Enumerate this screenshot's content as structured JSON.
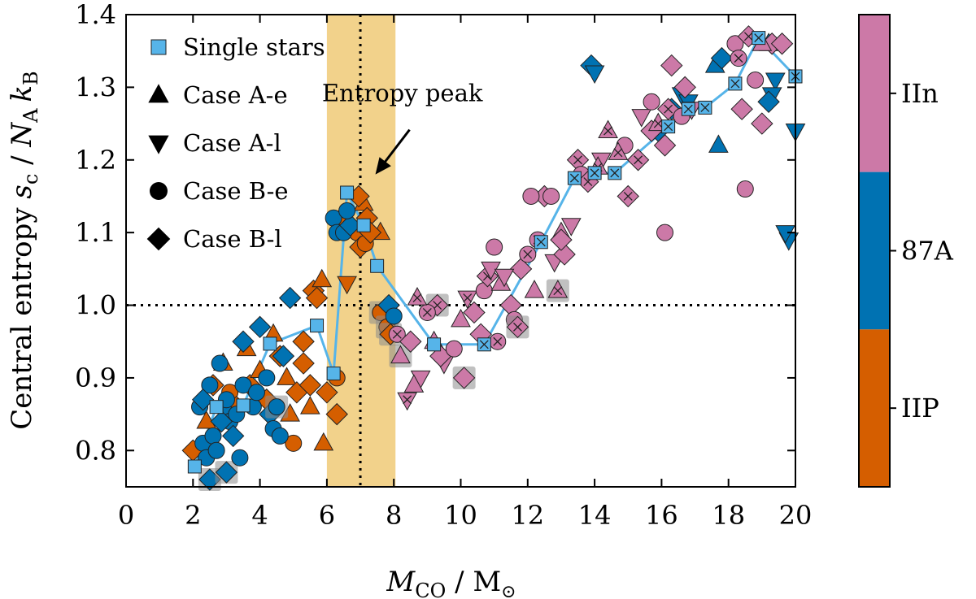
{
  "chart_data": {
    "type": "scatter",
    "xlabel_main": "M",
    "xlabel_sub": "CO",
    "xlabel_unit": " / M",
    "xlabel_sun": "⊙",
    "ylabel_pre": "Central entropy ",
    "ylabel_s": "s",
    "ylabel_c": "c",
    "ylabel_mid": " / ",
    "ylabel_N": "N",
    "ylabel_A": "A",
    "ylabel_k": "k",
    "ylabel_B": "B",
    "xlim": [
      0,
      20
    ],
    "ylim": [
      0.75,
      1.4
    ],
    "xticks": [
      "0",
      "2",
      "4",
      "6",
      "8",
      "10",
      "12",
      "14",
      "16",
      "18",
      "20"
    ],
    "yticks": [
      "0.8",
      "0.9",
      "1.0",
      "1.1",
      "1.2",
      "1.3",
      "1.4"
    ],
    "legend_position": "top-left",
    "legend": [
      {
        "label": "Single stars",
        "marker": "square",
        "color": "#56b4e9"
      },
      {
        "label": "Case A-e",
        "marker": "triangle-up",
        "color": "#000000"
      },
      {
        "label": "Case A-l",
        "marker": "triangle-down",
        "color": "#000000"
      },
      {
        "label": "Case B-e",
        "marker": "circle",
        "color": "#000000"
      },
      {
        "label": "Case B-l",
        "marker": "diamond",
        "color": "#000000"
      }
    ],
    "annotation": {
      "text": "Entropy peak",
      "arrow_to": [
        7.45,
        1.18
      ],
      "text_at": [
        8.4,
        1.29
      ]
    },
    "shaded_band": {
      "x0": 6.0,
      "x1": 8.05,
      "color": "#f2d28b"
    },
    "vline": 7.0,
    "hline": 1.0,
    "colorbar": {
      "labels": [
        "IIn",
        "87A",
        "IIP"
      ],
      "colors": [
        "#cc79a7",
        "#0072b2",
        "#d55e00"
      ]
    },
    "colors": {
      "IIP": "#d55e00",
      "87A": "#0072b2",
      "IIn": "#cc79a7",
      "single": "#56b4e9",
      "band": "#f2d28b"
    },
    "single_stars": [
      [
        2.05,
        0.778
      ],
      [
        2.7,
        0.86
      ],
      [
        3.5,
        0.862
      ],
      [
        4.3,
        0.947
      ],
      [
        5.7,
        0.972
      ],
      [
        6.2,
        0.906
      ],
      [
        6.6,
        1.155
      ],
      [
        7.1,
        1.11
      ],
      [
        7.5,
        1.054
      ],
      [
        9.2,
        0.946
      ],
      [
        10.7,
        0.946
      ],
      [
        12.4,
        1.087
      ],
      [
        13.4,
        1.175
      ],
      [
        14.0,
        1.182
      ],
      [
        14.6,
        1.182
      ],
      [
        16.2,
        1.246
      ],
      [
        16.8,
        1.27
      ],
      [
        17.3,
        1.272
      ],
      [
        18.2,
        1.305
      ],
      [
        18.9,
        1.368
      ],
      [
        20.0,
        1.315
      ]
    ],
    "points": [
      [
        "IIP",
        "d",
        2.0,
        0.8,
        0
      ],
      [
        "IIP",
        "u",
        2.4,
        0.84,
        0
      ],
      [
        "IIP",
        "d",
        2.6,
        0.89,
        0
      ],
      [
        "IIP",
        "u",
        2.9,
        0.92,
        0
      ],
      [
        "IIP",
        "c",
        3.1,
        0.88,
        0
      ],
      [
        "IIP",
        "d",
        3.3,
        0.86,
        0
      ],
      [
        "IIP",
        "u",
        3.6,
        0.94,
        0
      ],
      [
        "IIP",
        "d",
        3.7,
        0.89,
        0
      ],
      [
        "IIP",
        "u",
        4.0,
        0.91,
        0
      ],
      [
        "IIP",
        "d",
        4.2,
        0.87,
        0
      ],
      [
        "IIP",
        "u",
        4.4,
        0.96,
        0
      ],
      [
        "IIP",
        "d",
        4.6,
        0.93,
        0
      ],
      [
        "IIP",
        "u",
        4.8,
        0.9,
        0
      ],
      [
        "IIP",
        "c",
        5.0,
        0.81,
        0
      ],
      [
        "IIP",
        "d",
        5.3,
        0.95,
        0
      ],
      [
        "IIP",
        "u",
        5.5,
        0.86,
        0
      ],
      [
        "IIP",
        "d",
        5.6,
        1.02,
        0
      ],
      [
        "IIP",
        "u",
        5.9,
        0.81,
        0
      ],
      [
        "IIP",
        "d",
        5.3,
        0.92,
        0
      ],
      [
        "IIP",
        "d",
        5.1,
        0.88,
        0
      ],
      [
        "IIP",
        "u",
        4.9,
        0.85,
        0
      ],
      [
        "IIP",
        "c",
        6.3,
        0.9,
        0
      ],
      [
        "IIP",
        "d",
        5.7,
        1.01,
        0
      ],
      [
        "IIP",
        "d",
        5.5,
        0.89,
        0
      ],
      [
        "IIP",
        "u",
        5.85,
        1.035,
        0
      ],
      [
        "IIP",
        "d",
        6.0,
        0.88,
        0
      ],
      [
        "IIP",
        "d",
        6.3,
        0.85,
        0
      ],
      [
        "IIP",
        "u",
        6.4,
        1.12,
        0
      ],
      [
        "IIP",
        "c",
        6.9,
        1.1,
        0
      ],
      [
        "IIP",
        "d",
        7.0,
        1.08,
        0
      ],
      [
        "IIP",
        "u",
        7.1,
        1.14,
        0
      ],
      [
        "IIP",
        "d",
        7.2,
        1.12,
        0
      ],
      [
        "IIP",
        "c",
        7.15,
        1.085,
        0
      ],
      [
        "IIP",
        "v",
        6.6,
        1.03,
        0
      ],
      [
        "IIP",
        "c",
        7.6,
        0.99,
        1
      ],
      [
        "IIP",
        "c",
        7.8,
        0.97,
        1
      ],
      [
        "IIP",
        "d",
        7.9,
        0.96,
        1
      ],
      [
        "IIP",
        "u",
        7.6,
        1.1,
        0
      ],
      [
        "IIP",
        "d",
        6.95,
        1.15,
        0
      ],
      [
        "IIP",
        "d",
        7.3,
        1.1,
        0
      ],
      [
        "87A",
        "c",
        2.2,
        0.86,
        0
      ],
      [
        "87A",
        "c",
        2.3,
        0.81,
        0
      ],
      [
        "87A",
        "c",
        2.4,
        0.79,
        0
      ],
      [
        "87A",
        "d",
        2.5,
        0.76,
        1
      ],
      [
        "87A",
        "c",
        2.6,
        0.82,
        0
      ],
      [
        "87A",
        "c",
        2.5,
        0.89,
        0
      ],
      [
        "87A",
        "d",
        2.3,
        0.87,
        0
      ],
      [
        "87A",
        "c",
        2.8,
        0.92,
        0
      ],
      [
        "87A",
        "c",
        2.9,
        0.86,
        0
      ],
      [
        "87A",
        "d",
        3.0,
        0.77,
        1
      ],
      [
        "87A",
        "c",
        3.1,
        0.84,
        0
      ],
      [
        "87A",
        "d",
        3.2,
        0.82,
        0
      ],
      [
        "87A",
        "c",
        3.3,
        0.85,
        0
      ],
      [
        "87A",
        "c",
        3.5,
        0.89,
        0
      ],
      [
        "87A",
        "c",
        3.4,
        0.79,
        0
      ],
      [
        "87A",
        "d",
        3.5,
        0.95,
        0
      ],
      [
        "87A",
        "c",
        3.8,
        0.86,
        0
      ],
      [
        "87A",
        "c",
        3.9,
        0.88,
        0
      ],
      [
        "87A",
        "d",
        4.0,
        0.97,
        0
      ],
      [
        "87A",
        "c",
        4.2,
        0.9,
        0
      ],
      [
        "87A",
        "d",
        4.3,
        0.85,
        0
      ],
      [
        "87A",
        "c",
        4.5,
        0.86,
        1
      ],
      [
        "87A",
        "c",
        4.4,
        0.83,
        0
      ],
      [
        "87A",
        "c",
        4.6,
        0.82,
        0
      ],
      [
        "87A",
        "d",
        4.7,
        0.93,
        0
      ],
      [
        "87A",
        "d",
        4.9,
        1.01,
        0
      ],
      [
        "87A",
        "c",
        3.0,
        0.87,
        0
      ],
      [
        "87A",
        "c",
        2.7,
        0.8,
        0
      ],
      [
        "87A",
        "d",
        2.85,
        0.84,
        0
      ],
      [
        "87A",
        "c",
        6.2,
        1.12,
        0
      ],
      [
        "87A",
        "c",
        6.3,
        1.1,
        0
      ],
      [
        "87A",
        "c",
        6.5,
        1.1,
        0
      ],
      [
        "87A",
        "d",
        6.7,
        1.11,
        0
      ],
      [
        "87A",
        "c",
        6.6,
        1.13,
        0
      ],
      [
        "87A",
        "d",
        7.85,
        1.0,
        0
      ],
      [
        "87A",
        "c",
        8.0,
        0.985,
        0
      ],
      [
        "87A",
        "d",
        13.9,
        1.33,
        0
      ],
      [
        "87A",
        "v",
        14.0,
        1.32,
        0
      ],
      [
        "87A",
        "u",
        17.6,
        1.33,
        0
      ],
      [
        "87A",
        "d",
        17.8,
        1.34,
        0
      ],
      [
        "87A",
        "u",
        17.7,
        1.22,
        0
      ],
      [
        "87A",
        "v",
        16.6,
        1.29,
        0
      ],
      [
        "87A",
        "d",
        16.3,
        1.27,
        0
      ],
      [
        "87A",
        "v",
        16.8,
        1.28,
        0
      ],
      [
        "87A",
        "u",
        19.2,
        1.36,
        0
      ],
      [
        "87A",
        "v",
        19.4,
        1.31,
        0
      ],
      [
        "87A",
        "v",
        19.3,
        1.29,
        0
      ],
      [
        "87A",
        "d",
        19.2,
        1.28,
        0
      ],
      [
        "87A",
        "v",
        19.8,
        1.09,
        0
      ],
      [
        "87A",
        "v",
        20.0,
        1.24,
        0
      ],
      [
        "87A",
        "v",
        19.7,
        1.1,
        0
      ],
      [
        "87A",
        "d",
        15.9,
        1.24,
        0
      ],
      [
        "IIn",
        "d",
        9.3,
        1.0,
        1
      ],
      [
        "IIn",
        "c",
        8.1,
        0.96,
        0
      ],
      [
        "IIn",
        "u",
        8.2,
        0.93,
        1
      ],
      [
        "IIn",
        "d",
        8.5,
        0.95,
        0
      ],
      [
        "IIn",
        "v",
        8.8,
        0.9,
        0
      ],
      [
        "IIn",
        "u",
        8.6,
        0.89,
        0
      ],
      [
        "IIn",
        "v",
        8.4,
        0.87,
        0
      ],
      [
        "IIn",
        "c",
        9.0,
        0.99,
        0
      ],
      [
        "IIn",
        "u",
        9.2,
        0.95,
        0
      ],
      [
        "IIn",
        "v",
        9.5,
        0.92,
        0
      ],
      [
        "IIn",
        "d",
        9.4,
        0.93,
        0
      ],
      [
        "IIn",
        "u",
        10.0,
        0.98,
        0
      ],
      [
        "IIn",
        "v",
        10.2,
        1.01,
        0
      ],
      [
        "IIn",
        "d",
        10.4,
        0.99,
        0
      ],
      [
        "IIn",
        "c",
        10.7,
        1.02,
        0
      ],
      [
        "IIn",
        "d",
        10.8,
        1.04,
        0
      ],
      [
        "IIn",
        "v",
        10.9,
        1.05,
        0
      ],
      [
        "IIn",
        "c",
        11.0,
        1.08,
        0
      ],
      [
        "IIn",
        "u",
        11.2,
        1.03,
        0
      ],
      [
        "IIn",
        "d",
        11.5,
        1.0,
        0
      ],
      [
        "IIn",
        "c",
        11.6,
        0.98,
        0
      ],
      [
        "IIn",
        "d",
        11.8,
        1.05,
        0
      ],
      [
        "IIn",
        "u",
        12.2,
        1.02,
        0
      ],
      [
        "IIn",
        "d",
        12.5,
        1.15,
        0
      ],
      [
        "IIn",
        "c",
        12.1,
        1.15,
        0
      ],
      [
        "IIn",
        "c",
        12.7,
        1.15,
        0
      ],
      [
        "IIn",
        "v",
        12.8,
        1.06,
        0
      ],
      [
        "IIn",
        "u",
        13.0,
        1.1,
        0
      ],
      [
        "IIn",
        "v",
        13.3,
        1.11,
        0
      ],
      [
        "IIn",
        "d",
        13.5,
        1.2,
        0
      ],
      [
        "IIn",
        "c",
        13.6,
        1.18,
        0
      ],
      [
        "IIn",
        "d",
        13.8,
        1.17,
        0
      ],
      [
        "IIn",
        "v",
        14.2,
        1.2,
        0
      ],
      [
        "IIn",
        "u",
        14.4,
        1.24,
        0
      ],
      [
        "IIn",
        "c",
        14.9,
        1.22,
        0
      ],
      [
        "IIn",
        "d",
        15.3,
        1.2,
        0
      ],
      [
        "IIn",
        "v",
        15.4,
        1.26,
        0
      ],
      [
        "IIn",
        "d",
        15.7,
        1.24,
        0
      ],
      [
        "IIn",
        "u",
        15.9,
        1.25,
        0
      ],
      [
        "IIn",
        "d",
        16.1,
        1.22,
        0
      ],
      [
        "IIn",
        "c",
        16.1,
        1.1,
        0
      ],
      [
        "IIn",
        "d",
        16.2,
        1.27,
        0
      ],
      [
        "IIn",
        "d",
        16.3,
        1.33,
        0
      ],
      [
        "IIn",
        "c",
        16.6,
        1.26,
        0
      ],
      [
        "IIn",
        "d",
        16.7,
        1.3,
        0
      ],
      [
        "IIn",
        "v",
        16.9,
        1.27,
        0
      ],
      [
        "IIn",
        "c",
        18.2,
        1.36,
        0
      ],
      [
        "IIn",
        "c",
        18.3,
        1.34,
        0
      ],
      [
        "IIn",
        "d",
        18.4,
        1.27,
        0
      ],
      [
        "IIn",
        "c",
        18.5,
        1.16,
        0
      ],
      [
        "IIn",
        "c",
        18.8,
        1.31,
        0
      ],
      [
        "IIn",
        "d",
        19.0,
        1.25,
        0
      ],
      [
        "IIn",
        "d",
        19.3,
        1.36,
        0
      ],
      [
        "IIn",
        "d",
        19.6,
        1.36,
        0
      ],
      [
        "IIn",
        "u",
        19.0,
        1.36,
        0
      ],
      [
        "IIn",
        "d",
        18.6,
        1.37,
        0
      ],
      [
        "IIn",
        "d",
        10.1,
        0.9,
        1
      ],
      [
        "IIn",
        "u",
        12.9,
        1.02,
        1
      ],
      [
        "IIn",
        "d",
        11.7,
        0.97,
        1
      ],
      [
        "IIn",
        "c",
        11.1,
        0.95,
        0
      ],
      [
        "IIn",
        "c",
        12.0,
        1.07,
        0
      ],
      [
        "IIn",
        "d",
        13.1,
        1.07,
        0
      ],
      [
        "IIn",
        "u",
        14.7,
        1.21,
        0
      ],
      [
        "IIn",
        "c",
        15.7,
        1.28,
        0
      ],
      [
        "IIn",
        "d",
        15.0,
        1.15,
        0
      ],
      [
        "IIn",
        "c",
        9.8,
        0.94,
        0
      ],
      [
        "IIn",
        "u",
        8.7,
        1.01,
        0
      ],
      [
        "IIn",
        "d",
        10.6,
        0.96,
        0
      ],
      [
        "IIn",
        "v",
        11.3,
        1.04,
        0
      ],
      [
        "IIn",
        "c",
        12.3,
        1.09,
        0
      ],
      [
        "IIn",
        "d",
        13.0,
        1.09,
        0
      ],
      [
        "IIn",
        "u",
        14.1,
        1.19,
        0
      ]
    ]
  }
}
